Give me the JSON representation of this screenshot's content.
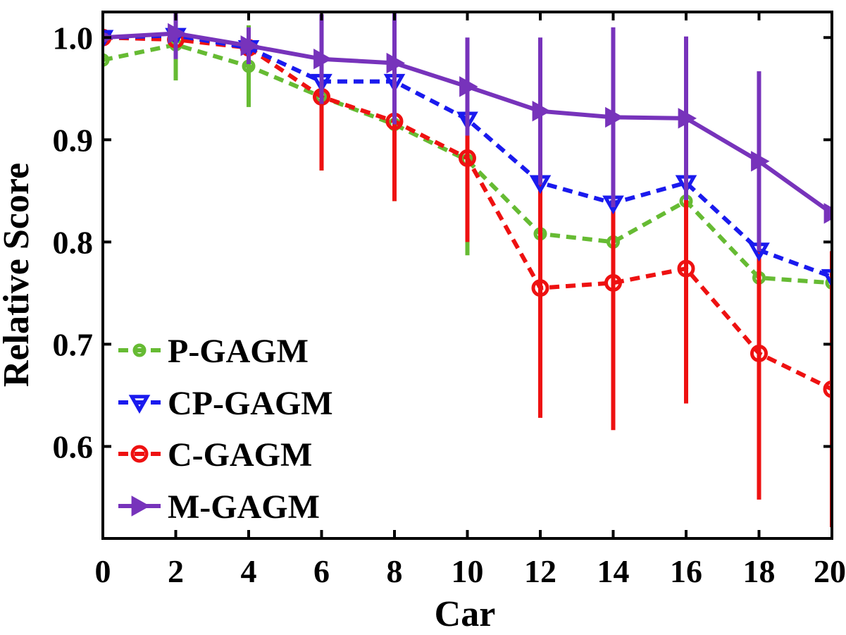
{
  "chart_data": {
    "type": "line",
    "xlabel": "Car",
    "ylabel": "Relative Score",
    "xlim": [
      0,
      20
    ],
    "ylim": [
      0.51,
      1.025
    ],
    "xticks": [
      0,
      2,
      4,
      6,
      8,
      10,
      12,
      14,
      16,
      18,
      20
    ],
    "xtick_labels": [
      "0",
      "2",
      "4",
      "6",
      "8",
      "10",
      "12",
      "14",
      "16",
      "18",
      "20"
    ],
    "yticks": [
      0.6,
      0.7,
      0.8,
      0.9,
      1.0
    ],
    "ytick_labels": [
      "0.6",
      "0.7",
      "0.8",
      "0.9",
      "1.0"
    ],
    "grid": false,
    "legend_position": "bottom-left",
    "x": [
      0,
      2,
      4,
      6,
      8,
      10,
      12,
      14,
      16,
      18,
      20
    ],
    "series": [
      {
        "name": "P-GAGM",
        "color": "#66bb33",
        "line_style": "dashed",
        "marker": "circle-small",
        "values": [
          0.978,
          0.993,
          0.972,
          0.942,
          0.915,
          0.88,
          0.808,
          0.8,
          0.84,
          0.765,
          0.76
        ],
        "error": [
          0.0,
          0.035,
          0.04,
          0.072,
          0.075,
          0.093,
          0.0,
          0.0,
          0.0,
          0.0,
          0.0
        ]
      },
      {
        "name": "CP-GAGM",
        "color": "#1a1aee",
        "line_style": "dashed",
        "marker": "triangle-down",
        "values": [
          1.0,
          1.002,
          0.99,
          0.957,
          0.957,
          0.92,
          0.858,
          0.838,
          0.858,
          0.792,
          0.766
        ],
        "error": [
          0.0,
          0.0,
          0.0,
          0.0,
          0.0,
          0.0,
          0.0,
          0.0,
          0.0,
          0.0,
          0.0
        ]
      },
      {
        "name": "C-GAGM",
        "color": "#ee1111",
        "line_style": "dashed",
        "marker": "circle",
        "values": [
          1.0,
          0.998,
          0.99,
          0.942,
          0.918,
          0.882,
          0.755,
          0.76,
          0.774,
          0.691,
          0.656
        ],
        "error": [
          0.0,
          0.0,
          0.0,
          0.072,
          0.078,
          0.082,
          0.127,
          0.144,
          0.132,
          0.143,
          0.135
        ]
      },
      {
        "name": "M-GAGM",
        "color": "#7733bb",
        "line_style": "solid",
        "marker": "triangle-right",
        "values": [
          1.0,
          1.004,
          0.992,
          0.979,
          0.975,
          0.952,
          0.928,
          0.922,
          0.921,
          0.879,
          0.828
        ],
        "error": [
          0.0,
          0.025,
          0.018,
          0.044,
          0.06,
          0.048,
          0.072,
          0.088,
          0.08,
          0.088,
          0.0
        ]
      }
    ]
  }
}
